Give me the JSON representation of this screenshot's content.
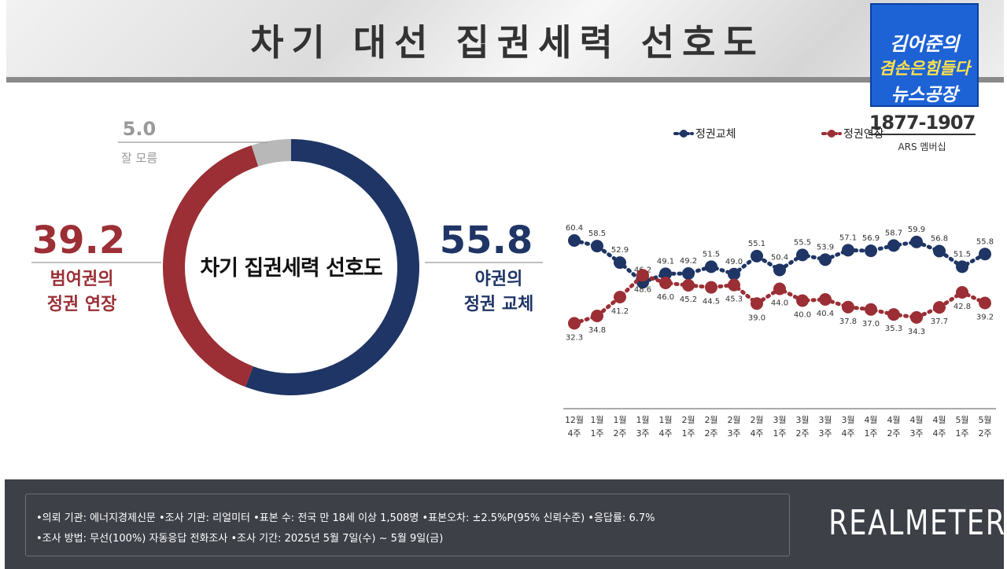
{
  "title": "차기 대선 집권세력 선호도",
  "badge": {
    "line1": "김어준의",
    "line2": "겸손은힘들다",
    "line3": "뉴스공장",
    "phone": "1877-1907",
    "ars": "ARS 멤버십"
  },
  "colors": {
    "opposition": "#1f3565",
    "ruling": "#9b2f35",
    "unknown": "#b8b8b8"
  },
  "chart_data": [
    {
      "type": "pie",
      "style": "donut",
      "center_label": "차기 집권세력 선호도",
      "slices": [
        {
          "label_line1": "야권의",
          "label_line2": "정권 교체",
          "value": 55.8
        },
        {
          "label_line1": "범여권의",
          "label_line2": "정권 연장",
          "value": 39.2
        },
        {
          "label_line1": "잘 모름",
          "label_line2": "",
          "value": 5.0
        }
      ],
      "value_labels": [
        "55.8",
        "39.2",
        "5.0"
      ]
    },
    {
      "type": "line",
      "legend": [
        "정권교체",
        "정권연장"
      ],
      "legend_position": "top",
      "x": [
        {
          "month": "12월",
          "week": "4주"
        },
        {
          "month": "1월",
          "week": "1주"
        },
        {
          "month": "1월",
          "week": "2주"
        },
        {
          "month": "1월",
          "week": "3주"
        },
        {
          "month": "1월",
          "week": "4주"
        },
        {
          "month": "2월",
          "week": "1주"
        },
        {
          "month": "2월",
          "week": "2주"
        },
        {
          "month": "2월",
          "week": "3주"
        },
        {
          "month": "2월",
          "week": "4주"
        },
        {
          "month": "3월",
          "week": "1주"
        },
        {
          "month": "3월",
          "week": "2주"
        },
        {
          "month": "3월",
          "week": "3주"
        },
        {
          "month": "3월",
          "week": "4주"
        },
        {
          "month": "4월",
          "week": "1주"
        },
        {
          "month": "4월",
          "week": "2주"
        },
        {
          "month": "4월",
          "week": "3주"
        },
        {
          "month": "4월",
          "week": "4주"
        },
        {
          "month": "5월",
          "week": "1주"
        },
        {
          "month": "5월",
          "week": "2주"
        }
      ],
      "series": [
        {
          "name": "정권교체",
          "values": [
            60.4,
            58.5,
            52.9,
            46.2,
            49.1,
            49.2,
            51.5,
            49.0,
            55.1,
            50.4,
            55.5,
            53.9,
            57.1,
            56.9,
            58.7,
            59.9,
            56.8,
            51.5,
            55.8
          ],
          "labels": [
            "60.4",
            "58.5",
            "52.9",
            "46.2",
            "49.1",
            "49.2",
            "51.5",
            "49.0",
            "55.1",
            "50.4",
            "55.5",
            "53.9",
            "57.1",
            "56.9",
            "58.7",
            "59.9",
            "56.8",
            "51.5",
            "55.8"
          ]
        },
        {
          "name": "정권연장",
          "values": [
            32.3,
            34.8,
            41.2,
            48.6,
            46.0,
            45.2,
            44.5,
            45.3,
            39.0,
            44.0,
            40.0,
            40.4,
            37.8,
            37.0,
            35.3,
            34.3,
            37.7,
            42.8,
            39.2
          ],
          "labels": [
            "32.3",
            "34.8",
            "41.2",
            "48.6",
            "46.0",
            "45.2",
            "44.5",
            "45.3",
            "39.0",
            "44.0",
            "40.0",
            "40.4",
            "37.8",
            "37.0",
            "35.3",
            "34.3",
            "37.7",
            "42.8",
            "39.2"
          ]
        }
      ],
      "ylim": [
        30,
        62
      ],
      "grid": false
    }
  ],
  "footer": {
    "line1": "•의뢰 기관: 에너지경제신문 •조사 기관: 리얼미터 •표본 수: 전국 만 18세 이상 1,508명 •표본오차: ±2.5%P(95% 신뢰수준) •응답률: 6.7%",
    "line2": "•조사 방법: 무선(100%) 자동응답 전화조사 •조사 기간: 2025년 5월 7일(수) ~ 5월 9일(금)",
    "brand": "REALMETER"
  }
}
